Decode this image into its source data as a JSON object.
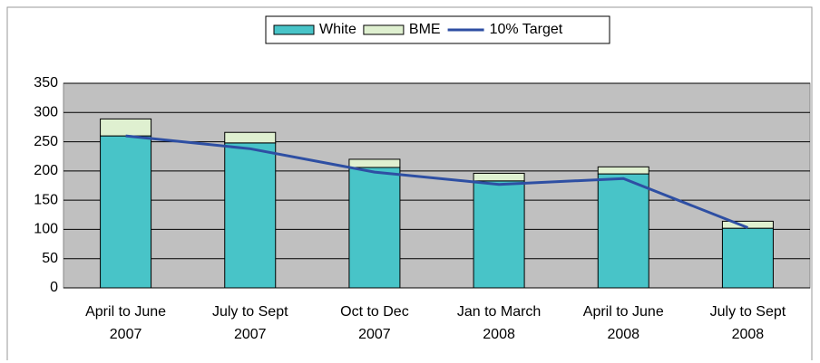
{
  "chart_data": {
    "type": "bar",
    "categories": [
      [
        "April to June",
        "2007"
      ],
      [
        "July to Sept",
        "2007"
      ],
      [
        "Oct to Dec",
        "2007"
      ],
      [
        "Jan to March",
        "2008"
      ],
      [
        "April to June",
        "2008"
      ],
      [
        "July to Sept",
        "2008"
      ]
    ],
    "series": [
      {
        "name": "White",
        "color": "#48c4c8",
        "values": [
          260,
          248,
          206,
          183,
          195,
          102
        ]
      },
      {
        "name": "BME",
        "color": "#dff0d0",
        "values": [
          29,
          18,
          14,
          13,
          12,
          12
        ]
      },
      {
        "name": "10% Target",
        "color": "#2e4fa3",
        "kind": "line",
        "values": [
          260,
          238,
          198,
          177,
          187,
          103
        ]
      }
    ],
    "stacked": true,
    "ylim": [
      0,
      350
    ],
    "yticks": [
      0,
      50,
      100,
      150,
      200,
      250,
      300,
      350
    ],
    "grid": true,
    "legend": "top"
  }
}
